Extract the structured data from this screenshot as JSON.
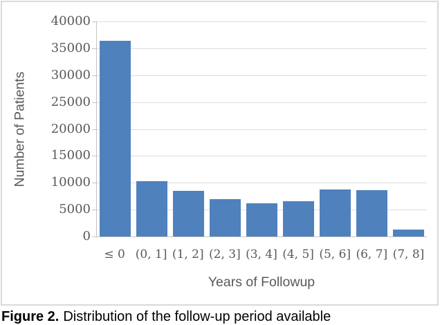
{
  "figure": {
    "caption_label": "Figure 2.",
    "caption_text": "Distribution of the follow-up period available"
  },
  "chart_data": {
    "type": "bar",
    "title": "",
    "xlabel": "Years of Followup",
    "ylabel": "Number of Patients",
    "categories": [
      "≤ 0",
      "(0, 1]",
      "(1, 2]",
      "(2, 3]",
      "(3, 4]",
      "(4, 5]",
      "(5, 6]",
      "(6, 7]",
      "(7, 8]"
    ],
    "values": [
      36400,
      10300,
      8500,
      7000,
      6200,
      6500,
      8750,
      8600,
      1300
    ],
    "ylim": [
      0,
      40000
    ],
    "ytick_step": 5000,
    "yticks": [
      0,
      5000,
      10000,
      15000,
      20000,
      25000,
      30000,
      35000,
      40000
    ],
    "grid": "horizontal-major",
    "legend": "none",
    "colors": {
      "bar": "#4f81bd",
      "gridline": "#dcdcdc",
      "axis_line": "#c3c3c3",
      "tick_label": "#595959",
      "axis_title": "#595959",
      "frame_border": "#d9d9d9",
      "caption": "#000000"
    }
  }
}
